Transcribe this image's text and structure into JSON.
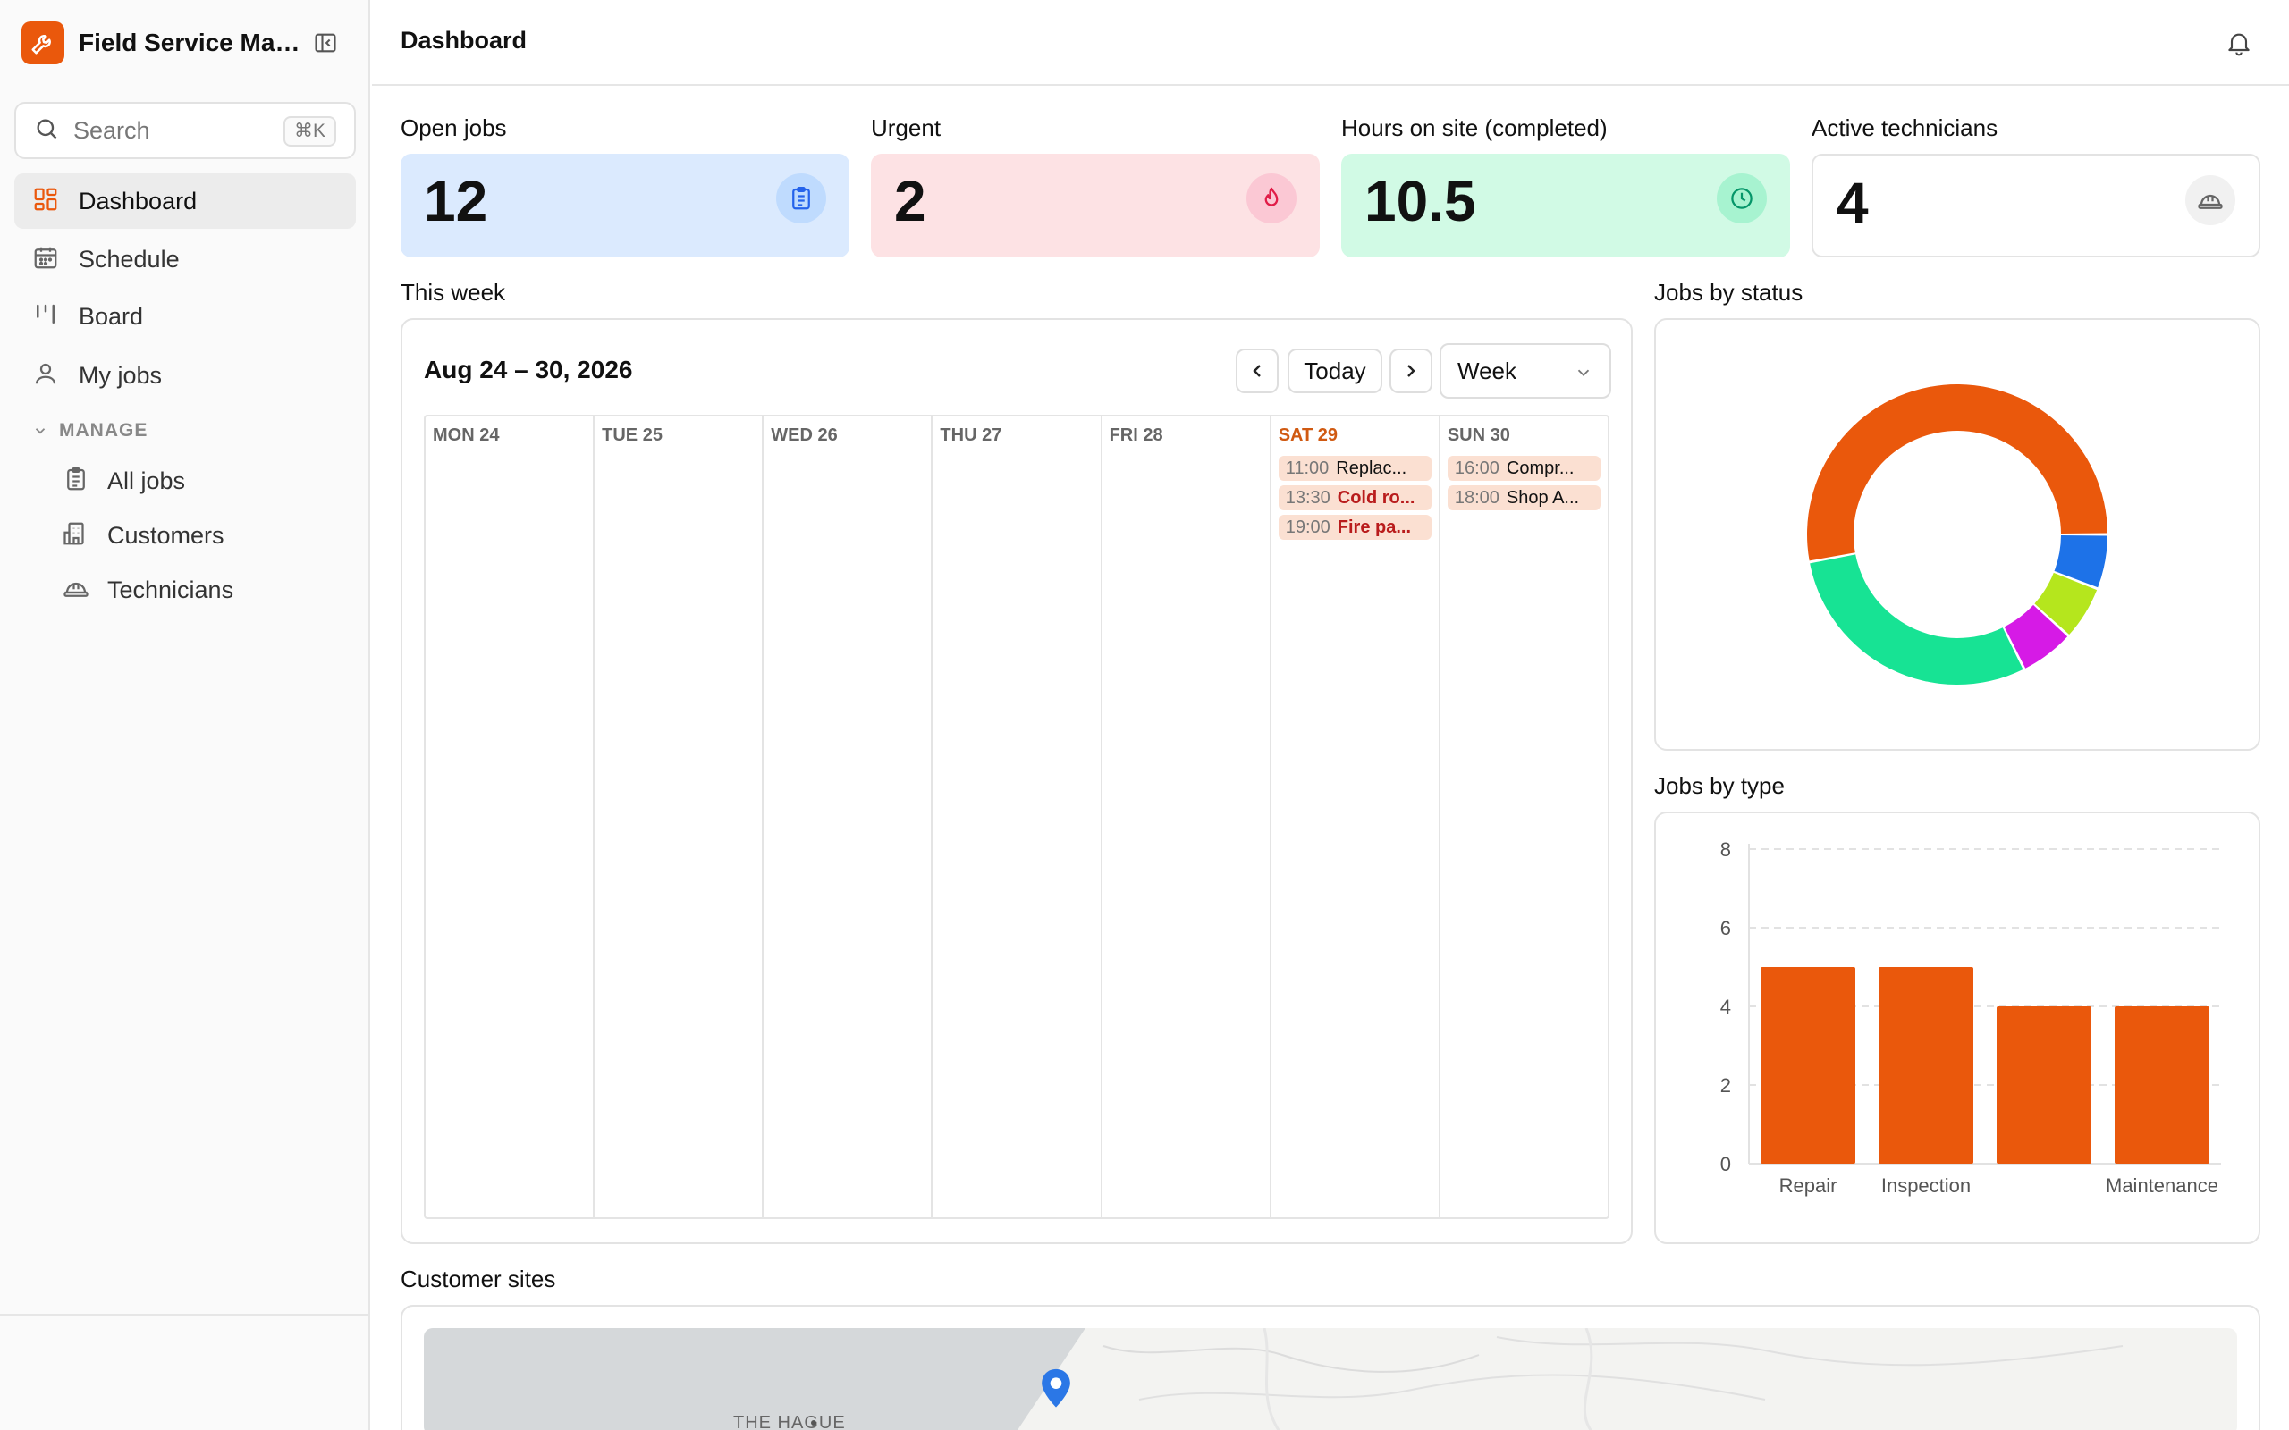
{
  "app": {
    "title": "Field Service Man..."
  },
  "search": {
    "placeholder": "Search",
    "shortcut": "⌘K"
  },
  "nav": {
    "items": [
      {
        "label": "Dashboard",
        "icon": "dashboard-icon"
      },
      {
        "label": "Schedule",
        "icon": "calendar-icon"
      },
      {
        "label": "Board",
        "icon": "board-icon"
      },
      {
        "label": "My jobs",
        "icon": "user-icon"
      }
    ],
    "section": "MANAGE",
    "manage_items": [
      {
        "label": "All jobs",
        "icon": "clipboard-icon"
      },
      {
        "label": "Customers",
        "icon": "building-icon"
      },
      {
        "label": "Technicians",
        "icon": "hardhat-icon"
      }
    ]
  },
  "header": {
    "title": "Dashboard"
  },
  "stats": [
    {
      "label": "Open jobs",
      "value": "12",
      "bg": "#dbeafe",
      "icon_bg": "#bfdbfe",
      "icon_color": "#2563eb",
      "icon": "clipboard-icon"
    },
    {
      "label": "Urgent",
      "value": "2",
      "bg": "#fde2e4",
      "icon_bg": "#fbc8d4",
      "icon_color": "#e11d48",
      "icon": "flame-icon"
    },
    {
      "label": "Hours on site (completed)",
      "value": "10.5",
      "bg": "#d1fae5",
      "icon_bg": "#a7f3d0",
      "icon_color": "#059669",
      "icon": "clock-icon"
    },
    {
      "label": "Active technicians",
      "value": "4",
      "bg": "#ffffff",
      "icon_bg": "#f1f1f1",
      "icon_color": "#666666",
      "icon": "hardhat-icon"
    }
  ],
  "calendar": {
    "section_label": "This week",
    "range": "Aug 24 – 30, 2026",
    "today_label": "Today",
    "view_label": "Week",
    "days": [
      "MON 24",
      "TUE 25",
      "WED 26",
      "THU 27",
      "FRI 28",
      "SAT 29",
      "SUN 30"
    ],
    "events": {
      "SAT 29": [
        {
          "time": "11:00",
          "title": "Replac...",
          "urgent": false
        },
        {
          "time": "13:30",
          "title": "Cold ro...",
          "urgent": true
        },
        {
          "time": "19:00",
          "title": "Fire pa...",
          "urgent": true
        }
      ],
      "SUN 30": [
        {
          "time": "16:00",
          "title": "Compr...",
          "urgent": false
        },
        {
          "time": "18:00",
          "title": "Shop A...",
          "urgent": false
        }
      ]
    }
  },
  "status_chart": {
    "label": "Jobs by status",
    "chart_data": {
      "type": "pie",
      "donut": true,
      "slices": [
        {
          "value": 9,
          "color": "#ea580c"
        },
        {
          "value": 1,
          "color": "#1d72e8"
        },
        {
          "value": 1,
          "color": "#b5e61d"
        },
        {
          "value": 1,
          "color": "#d61ae6"
        },
        {
          "value": 5,
          "color": "#17e394"
        }
      ]
    }
  },
  "type_chart": {
    "label": "Jobs by type",
    "chart_data": {
      "type": "bar",
      "categories": [
        "Repair",
        "Inspection",
        "",
        "Maintenance"
      ],
      "values": [
        5,
        5,
        4,
        4
      ],
      "ylim": [
        0,
        8
      ],
      "yticks": [
        0,
        2,
        4,
        6,
        8
      ],
      "color": "#ea580c"
    }
  },
  "map": {
    "label": "Customer sites",
    "place": "THE HAGUE"
  }
}
